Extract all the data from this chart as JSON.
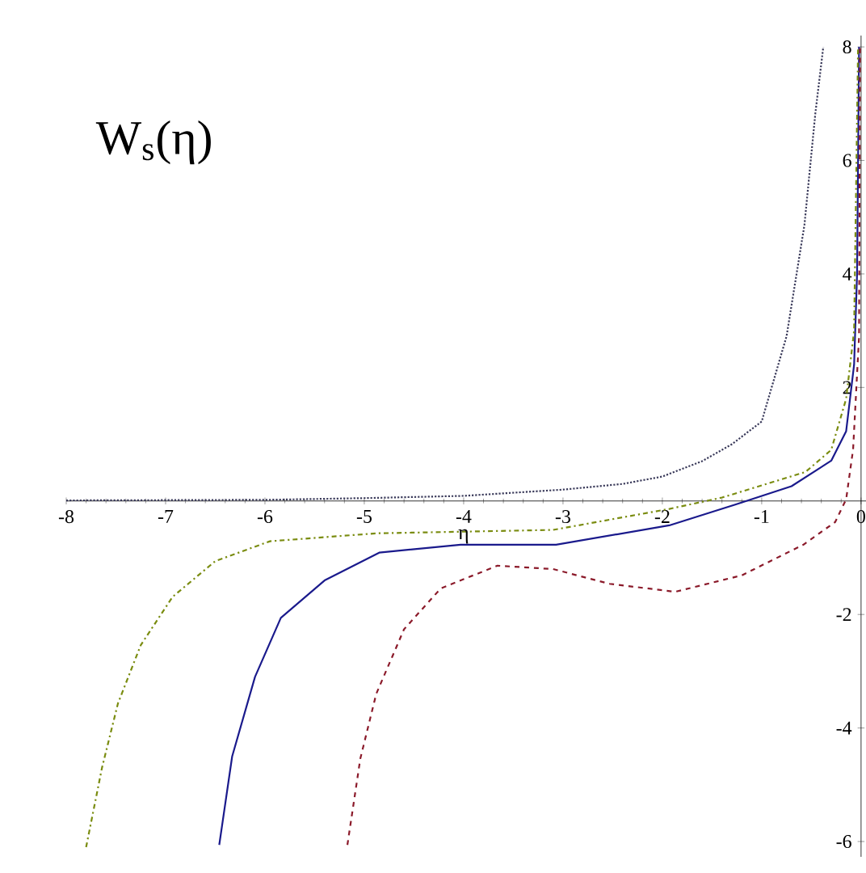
{
  "chart_data": {
    "type": "line",
    "title": "W$_{s}$(η)",
    "xlabel": "η",
    "xlim": [
      -8,
      0.05
    ],
    "ylim": [
      -6.27,
      8.2
    ],
    "xticks": [
      -8,
      -7,
      -6,
      -5,
      -4,
      -3,
      -2,
      -1,
      0
    ],
    "yticks": [
      -6,
      -4,
      -2,
      2,
      4,
      6,
      8
    ],
    "grid": false,
    "marker": "none",
    "series": [
      {
        "color": "#3a3a5a",
        "line_style": "dotted",
        "x": [
          -8,
          -6,
          -5,
          -4,
          -3,
          -2.4,
          -2,
          -1.6,
          -1.3,
          -1,
          -0.75,
          -0.57,
          -0.46,
          -0.38
        ],
        "values": [
          0.01,
          0.02,
          0.05,
          0.09,
          0.2,
          0.3,
          0.43,
          0.7,
          1.0,
          1.4,
          2.9,
          4.86,
          6.83,
          8
        ]
      },
      {
        "color": "#1a1a8c",
        "line_style": "solid",
        "x": [
          -6.46,
          -6.33,
          -6.1,
          -5.84,
          -5.4,
          -4.85,
          -4.03,
          -3.07,
          -1.93,
          -1.26,
          -0.7,
          -0.3,
          -0.15,
          -0.07,
          -0.04,
          -0.02
        ],
        "values": [
          -6.06,
          -4.5,
          -3.1,
          -2.06,
          -1.4,
          -0.91,
          -0.77,
          -0.77,
          -0.43,
          -0.06,
          0.26,
          0.71,
          1.23,
          2.4,
          4,
          8
        ]
      },
      {
        "color": "#7a8c10",
        "line_style": "dashdot",
        "x": [
          -7.8,
          -7.64,
          -7.48,
          -7.25,
          -6.93,
          -6.5,
          -5.95,
          -4.88,
          -3.1,
          -1.93,
          -1.4,
          -0.56,
          -0.3,
          -0.15,
          -0.07,
          -0.03
        ],
        "values": [
          -6.1,
          -4.7,
          -3.57,
          -2.54,
          -1.69,
          -1.06,
          -0.71,
          -0.57,
          -0.51,
          -0.14,
          0.06,
          0.51,
          0.9,
          1.8,
          3,
          8
        ]
      },
      {
        "color": "#8b1a2a",
        "line_style": "dashed",
        "x": [
          -5.17,
          -5.04,
          -4.88,
          -4.6,
          -4.23,
          -3.66,
          -3.1,
          -2.53,
          -1.87,
          -1.2,
          -0.58,
          -0.26,
          -0.15,
          -0.08,
          -0.02,
          -0.01
        ],
        "values": [
          -6.06,
          -4.54,
          -3.4,
          -2.26,
          -1.54,
          -1.14,
          -1.2,
          -1.46,
          -1.6,
          -1.31,
          -0.77,
          -0.37,
          0.03,
          0.91,
          2.9,
          8
        ]
      }
    ]
  }
}
